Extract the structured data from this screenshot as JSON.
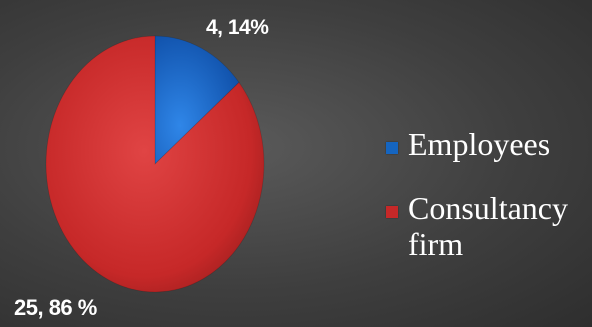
{
  "chart_data": {
    "type": "pie",
    "categories": [
      "Employees",
      "Consultancy firm"
    ],
    "values": [
      14,
      86
    ],
    "data_labels": [
      "4, 14%",
      "25, 86 %"
    ],
    "colors": [
      "#1565c0",
      "#c62828"
    ],
    "legend_position": "right",
    "title": ""
  },
  "colors": {
    "background": "#3f3f3f",
    "text": "#ffffff"
  }
}
